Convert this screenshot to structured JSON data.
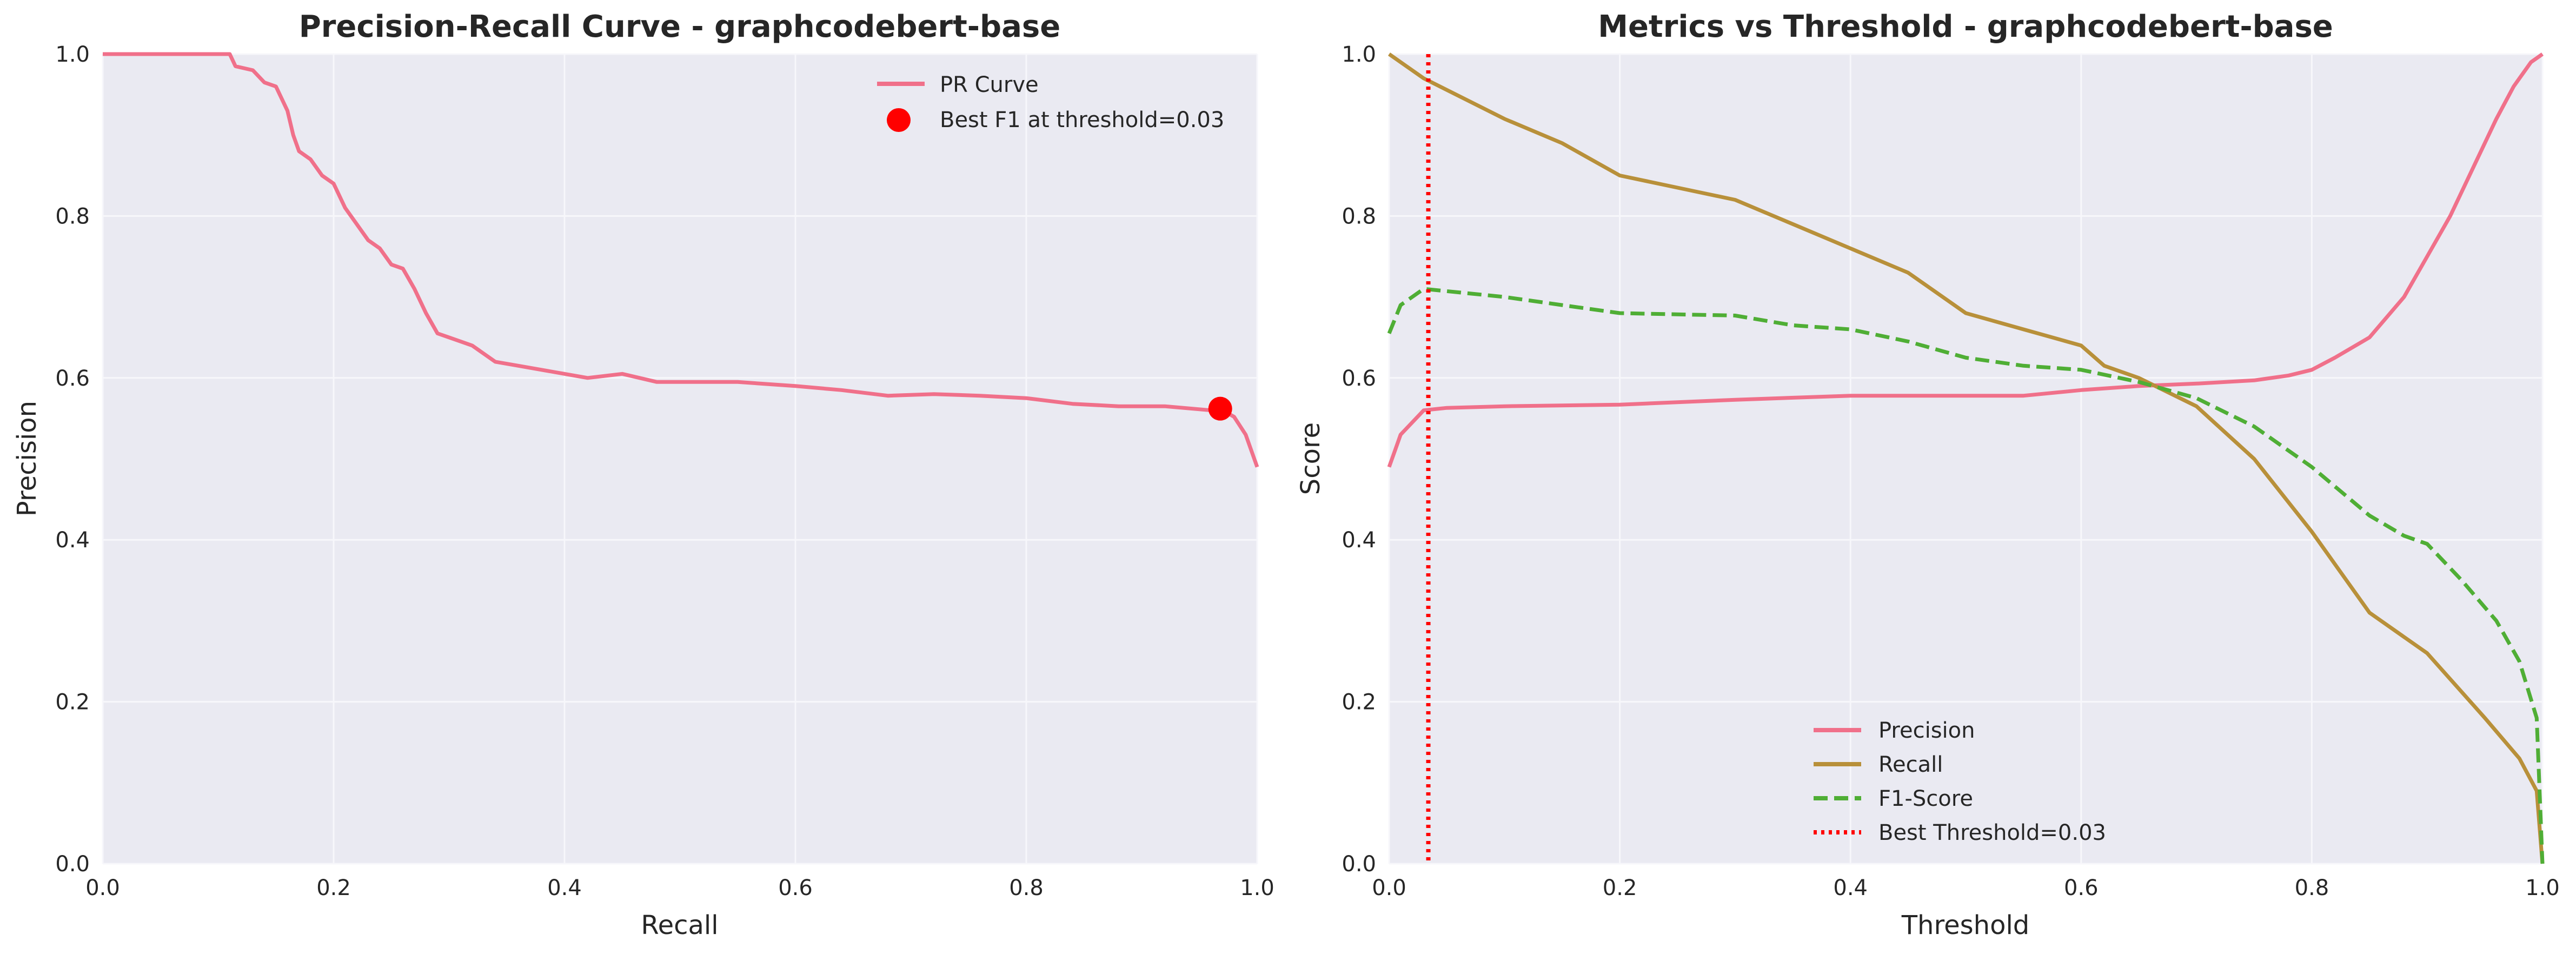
{
  "colors": {
    "axes_bg": "#EAEAF2",
    "grid": "#F7F7FB",
    "precision": "#F0708A",
    "recall": "#B8903A",
    "f1": "#4FAE35",
    "best": "#FF0000"
  },
  "chart_data": [
    {
      "type": "line",
      "title": "Precision-Recall Curve - graphcodebert-base",
      "xlabel": "Recall",
      "ylabel": "Precision",
      "xlim": [
        0,
        1
      ],
      "ylim": [
        0,
        1
      ],
      "x_ticks": [
        "0.0",
        "0.2",
        "0.4",
        "0.6",
        "0.8",
        "1.0"
      ],
      "y_ticks": [
        "0.0",
        "0.2",
        "0.4",
        "0.6",
        "0.8",
        "1.0"
      ],
      "grid": true,
      "legend_position": "top-right",
      "series": [
        {
          "name": "PR Curve",
          "style": "solid",
          "points": [
            [
              0.0,
              1.0
            ],
            [
              0.11,
              1.0
            ],
            [
              0.115,
              0.985
            ],
            [
              0.13,
              0.98
            ],
            [
              0.14,
              0.965
            ],
            [
              0.15,
              0.96
            ],
            [
              0.16,
              0.93
            ],
            [
              0.165,
              0.9
            ],
            [
              0.17,
              0.88
            ],
            [
              0.18,
              0.87
            ],
            [
              0.19,
              0.85
            ],
            [
              0.2,
              0.84
            ],
            [
              0.21,
              0.81
            ],
            [
              0.22,
              0.79
            ],
            [
              0.23,
              0.77
            ],
            [
              0.24,
              0.76
            ],
            [
              0.25,
              0.74
            ],
            [
              0.26,
              0.735
            ],
            [
              0.27,
              0.71
            ],
            [
              0.28,
              0.68
            ],
            [
              0.29,
              0.655
            ],
            [
              0.3,
              0.65
            ],
            [
              0.32,
              0.64
            ],
            [
              0.34,
              0.62
            ],
            [
              0.36,
              0.615
            ],
            [
              0.4,
              0.605
            ],
            [
              0.42,
              0.6
            ],
            [
              0.45,
              0.605
            ],
            [
              0.48,
              0.595
            ],
            [
              0.52,
              0.595
            ],
            [
              0.55,
              0.595
            ],
            [
              0.6,
              0.59
            ],
            [
              0.64,
              0.585
            ],
            [
              0.68,
              0.578
            ],
            [
              0.72,
              0.58
            ],
            [
              0.76,
              0.578
            ],
            [
              0.8,
              0.575
            ],
            [
              0.84,
              0.568
            ],
            [
              0.88,
              0.565
            ],
            [
              0.92,
              0.565
            ],
            [
              0.96,
              0.56
            ],
            [
              0.97,
              0.56
            ],
            [
              0.98,
              0.552
            ],
            [
              0.99,
              0.53
            ],
            [
              1.0,
              0.49
            ]
          ]
        },
        {
          "name": "Best F1 at threshold=0.03",
          "style": "marker",
          "points": [
            [
              0.968,
              0.562
            ]
          ]
        }
      ]
    },
    {
      "type": "line",
      "title": "Metrics vs Threshold - graphcodebert-base",
      "xlabel": "Threshold",
      "ylabel": "Score",
      "xlim": [
        0,
        1
      ],
      "ylim": [
        0,
        1
      ],
      "x_ticks": [
        "0.0",
        "0.2",
        "0.4",
        "0.6",
        "0.8",
        "1.0"
      ],
      "y_ticks": [
        "0.0",
        "0.2",
        "0.4",
        "0.6",
        "0.8",
        "1.0"
      ],
      "grid": true,
      "legend_position": "bottom-center",
      "series": [
        {
          "name": "Precision",
          "style": "solid",
          "points": [
            [
              0.0,
              0.49
            ],
            [
              0.005,
              0.51
            ],
            [
              0.01,
              0.53
            ],
            [
              0.02,
              0.545
            ],
            [
              0.03,
              0.56
            ],
            [
              0.05,
              0.563
            ],
            [
              0.1,
              0.565
            ],
            [
              0.2,
              0.567
            ],
            [
              0.3,
              0.573
            ],
            [
              0.4,
              0.578
            ],
            [
              0.5,
              0.578
            ],
            [
              0.55,
              0.578
            ],
            [
              0.6,
              0.585
            ],
            [
              0.65,
              0.59
            ],
            [
              0.7,
              0.593
            ],
            [
              0.75,
              0.597
            ],
            [
              0.78,
              0.603
            ],
            [
              0.8,
              0.61
            ],
            [
              0.82,
              0.625
            ],
            [
              0.85,
              0.65
            ],
            [
              0.88,
              0.7
            ],
            [
              0.9,
              0.75
            ],
            [
              0.92,
              0.8
            ],
            [
              0.94,
              0.86
            ],
            [
              0.96,
              0.92
            ],
            [
              0.975,
              0.96
            ],
            [
              0.99,
              0.99
            ],
            [
              1.0,
              1.0
            ]
          ]
        },
        {
          "name": "Recall",
          "style": "solid",
          "points": [
            [
              0.0,
              1.0
            ],
            [
              0.03,
              0.97
            ],
            [
              0.1,
              0.92
            ],
            [
              0.15,
              0.89
            ],
            [
              0.2,
              0.85
            ],
            [
              0.25,
              0.835
            ],
            [
              0.3,
              0.82
            ],
            [
              0.35,
              0.79
            ],
            [
              0.4,
              0.76
            ],
            [
              0.45,
              0.73
            ],
            [
              0.5,
              0.68
            ],
            [
              0.55,
              0.66
            ],
            [
              0.6,
              0.64
            ],
            [
              0.62,
              0.615
            ],
            [
              0.65,
              0.6
            ],
            [
              0.7,
              0.565
            ],
            [
              0.75,
              0.5
            ],
            [
              0.8,
              0.41
            ],
            [
              0.85,
              0.31
            ],
            [
              0.9,
              0.26
            ],
            [
              0.95,
              0.18
            ],
            [
              0.98,
              0.13
            ],
            [
              0.995,
              0.09
            ],
            [
              1.0,
              0.0
            ]
          ]
        },
        {
          "name": "F1-Score",
          "style": "dashed",
          "points": [
            [
              0.0,
              0.655
            ],
            [
              0.01,
              0.69
            ],
            [
              0.03,
              0.71
            ],
            [
              0.1,
              0.7
            ],
            [
              0.15,
              0.69
            ],
            [
              0.2,
              0.68
            ],
            [
              0.3,
              0.677
            ],
            [
              0.35,
              0.665
            ],
            [
              0.4,
              0.66
            ],
            [
              0.45,
              0.645
            ],
            [
              0.5,
              0.625
            ],
            [
              0.55,
              0.615
            ],
            [
              0.6,
              0.61
            ],
            [
              0.65,
              0.595
            ],
            [
              0.7,
              0.575
            ],
            [
              0.75,
              0.54
            ],
            [
              0.8,
              0.49
            ],
            [
              0.85,
              0.43
            ],
            [
              0.88,
              0.405
            ],
            [
              0.9,
              0.395
            ],
            [
              0.93,
              0.35
            ],
            [
              0.96,
              0.3
            ],
            [
              0.98,
              0.25
            ],
            [
              0.995,
              0.18
            ],
            [
              1.0,
              0.0
            ]
          ]
        },
        {
          "name": "Best Threshold=0.03",
          "style": "dotted-vertical",
          "x": 0.034
        }
      ]
    }
  ]
}
